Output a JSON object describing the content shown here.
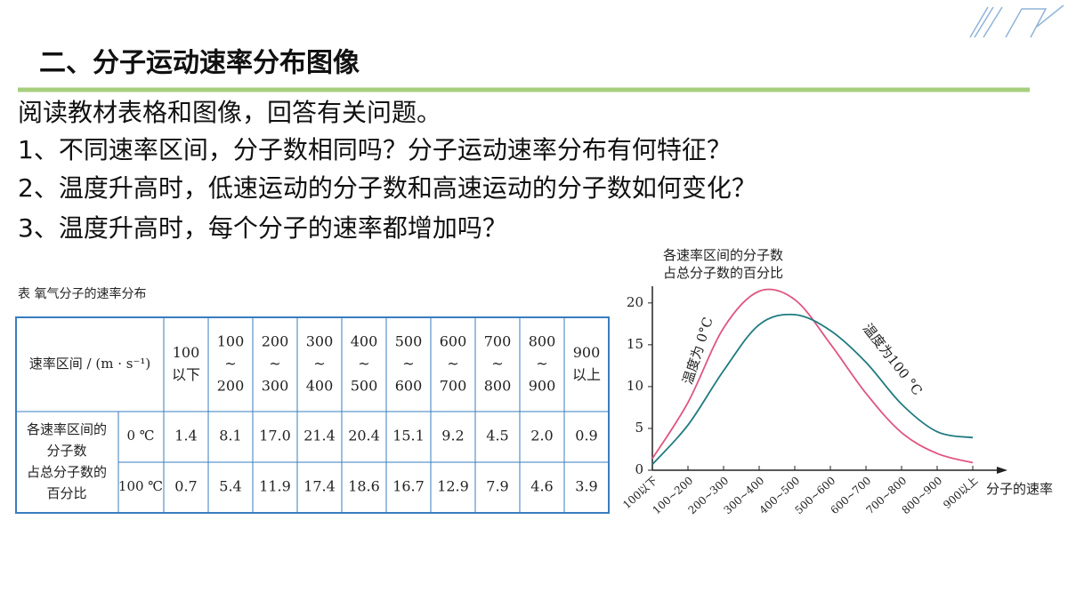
{
  "title": "二、分子运动速率分布图像",
  "questions": [
    "阅读教材表格和图像，回答有关问题。",
    "1、不同速率区间，分子数相同吗？分子运动速率分布有何特征？",
    "2、温度升高时，低速运动的分子数和高速运动的分子数如何变化？",
    "3、温度升高时，每个分子的速率都增加吗？"
  ],
  "table": {
    "caption": "表  氧气分子的速率分布",
    "header": "速率区间 / (m · s⁻¹)",
    "ranges": [
      [
        "100",
        "以下"
      ],
      [
        "100",
        "~",
        "200"
      ],
      [
        "200",
        "~",
        "300"
      ],
      [
        "300",
        "~",
        "400"
      ],
      [
        "400",
        "~",
        "500"
      ],
      [
        "500",
        "~",
        "600"
      ],
      [
        "600",
        "~",
        "700"
      ],
      [
        "700",
        "~",
        "800"
      ],
      [
        "800",
        "~",
        "900"
      ],
      [
        "900",
        "以上"
      ]
    ],
    "row_label": [
      "各速率区间的",
      "分子数",
      "占总分子数的",
      "百分比"
    ],
    "rows": [
      {
        "temp": "0 ℃",
        "values": [
          "1.4",
          "8.1",
          "17.0",
          "21.4",
          "20.4",
          "15.1",
          "9.2",
          "4.5",
          "2.0",
          "0.9"
        ]
      },
      {
        "temp": "100 ℃",
        "values": [
          "0.7",
          "5.4",
          "11.9",
          "17.4",
          "18.6",
          "16.7",
          "12.9",
          "7.9",
          "4.6",
          "3.9"
        ]
      }
    ]
  },
  "chart_data": {
    "type": "line",
    "y_label": [
      "各速率区间的分子数",
      "占总分子数的百分比"
    ],
    "x_label": "分子的速率",
    "categories": [
      "100以下",
      "100~200",
      "200~300",
      "300~400",
      "400~500",
      "500~600",
      "600~700",
      "700~800",
      "800~900",
      "900以上"
    ],
    "series": [
      {
        "name": "温度为 0°C",
        "color": "#e05580",
        "values": [
          1.4,
          8.1,
          17,
          21.4,
          20.4,
          15.1,
          9.2,
          4.5,
          2,
          0.9
        ]
      },
      {
        "name": "温度为100 °C",
        "color": "#1f7a80",
        "values": [
          0.7,
          5.4,
          11.9,
          17.4,
          18.6,
          16.7,
          12.9,
          7.9,
          4.6,
          3.9
        ]
      }
    ],
    "ylim": [
      0,
      22
    ],
    "yticks": [
      0,
      5,
      10,
      15,
      20
    ]
  }
}
